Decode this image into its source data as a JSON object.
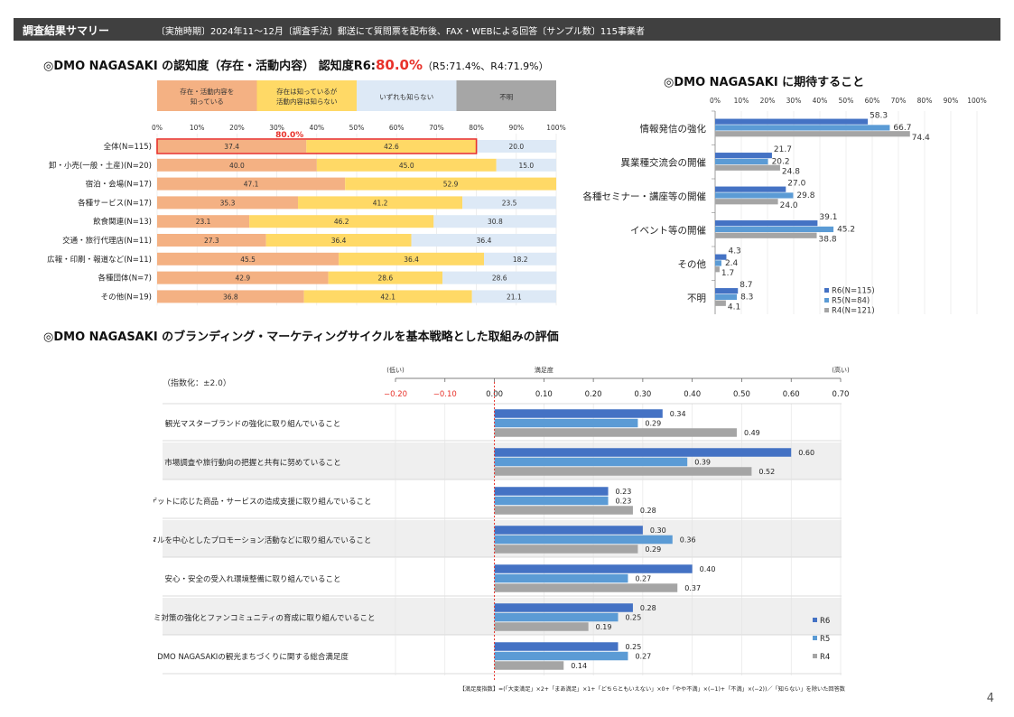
{
  "header": {
    "title": "調査結果サマリー",
    "description": "〔実施時期〕2024年11～12月〔調査手法〕郵送にて質問票を配布後、FAX・WEBによる回答〔サンプル数〕115事業者"
  },
  "section1": {
    "title": "◎DMO NAGASAKI の認知度（存在・活動内容） 認知度R6:",
    "highlight": "80.0%",
    "previous": "（R5:71.4%、R4:71.9%）"
  },
  "section2": {
    "title": "◎DMO NAGASAKI に期待すること"
  },
  "section3": {
    "title": "◎DMO NAGASAKI のブランディング・マーケティングサイクルを基本戦略とした取組みの評価"
  },
  "page_number": "4",
  "colors": {
    "header_bg": "#404040",
    "accent_red": "#e8322a",
    "stack_know_both": "#f4b183",
    "stack_know_exist": "#ffd966",
    "stack_none": "#dde9f6",
    "stack_unknown": "#a6a6a6",
    "r6": "#4472c4",
    "r5": "#5b9bd5",
    "r4": "#a5a5a5"
  },
  "chart_data": [
    {
      "type": "bar",
      "orientation": "horizontal",
      "stacked": true,
      "legend": [
        "存在・活動内容を知っている",
        "存在は知っているが活動内容は知らない",
        "いずれも知らない",
        "不明"
      ],
      "categories": [
        "全体(N=115)",
        "卸・小売(一般・土産)(N=20)",
        "宿泊・会場(N=17)",
        "各種サービス(N=17)",
        "飲食関連(N=13)",
        "交通・旅行代理店(N=11)",
        "広報・印刷・報道など(N=11)",
        "各種団体(N=7)",
        "その他(N=19)"
      ],
      "series": [
        {
          "name": "存在・活動内容を知っている",
          "values": [
            37.4,
            40.0,
            47.1,
            35.3,
            23.1,
            27.3,
            45.5,
            42.9,
            36.8
          ]
        },
        {
          "name": "存在は知っているが活動内容は知らない",
          "values": [
            42.6,
            45.0,
            52.9,
            41.2,
            46.2,
            36.4,
            36.4,
            28.6,
            42.1
          ]
        },
        {
          "name": "いずれも知らない",
          "values": [
            20.0,
            15.0,
            0,
            23.5,
            30.8,
            36.4,
            18.2,
            28.6,
            21.1
          ]
        },
        {
          "name": "不明",
          "values": [
            0,
            0,
            0,
            0,
            0,
            0,
            0,
            0,
            0
          ]
        }
      ],
      "value_labels": [
        [
          "37.4",
          "42.6",
          "20.0"
        ],
        [
          "40.0",
          "45.0",
          "15.0"
        ],
        [
          "47.1",
          "52.9",
          ""
        ],
        [
          "35.3",
          "41.2",
          "23.5"
        ],
        [
          "23.1",
          "46.2",
          "30.8"
        ],
        [
          "27.3",
          "36.4",
          "36.4"
        ],
        [
          "45.5",
          "36.4",
          "18.2"
        ],
        [
          "42.9",
          "28.6",
          "28.6"
        ],
        [
          "36.8",
          "42.1",
          "21.1"
        ]
      ],
      "xticks": [
        "0%",
        "10%",
        "20%",
        "30%",
        "40%",
        "50%",
        "60%",
        "70%",
        "80%",
        "90%",
        "100%"
      ],
      "xlim": [
        0,
        100
      ],
      "annotation": "80.0%"
    },
    {
      "type": "bar",
      "orientation": "horizontal",
      "categories": [
        "情報発信の強化",
        "異業種交流会の開催",
        "各種セミナー・講座等の開催",
        "イベント等の開催",
        "その他",
        "不明"
      ],
      "series": [
        {
          "name": "R6(N=115)",
          "values": [
            58.3,
            21.7,
            27.0,
            39.1,
            4.3,
            8.7
          ],
          "labels": [
            "58.3",
            "21.7",
            "27.0",
            "39.1",
            "4.3",
            "8.7"
          ]
        },
        {
          "name": "R5(N=84)",
          "values": [
            66.7,
            20.2,
            29.8,
            45.2,
            2.4,
            8.3
          ],
          "labels": [
            "66.7",
            "20.2",
            "29.8",
            "45.2",
            "2.4",
            "8.3"
          ]
        },
        {
          "name": "R4(N=121)",
          "values": [
            74.4,
            24.8,
            24.0,
            38.8,
            1.7,
            4.1
          ],
          "labels": [
            "74.4",
            "24.8",
            "24.0",
            "38.8",
            "1.7",
            "4.1"
          ]
        }
      ],
      "xticks": [
        "0%",
        "10%",
        "20%",
        "30%",
        "40%",
        "50%",
        "60%",
        "70%",
        "80%",
        "90%",
        "100%"
      ],
      "xlim": [
        0,
        100
      ],
      "legend_position": "bottom-right"
    },
    {
      "type": "bar",
      "orientation": "horizontal",
      "categories": [
        "観光マスターブランドの強化に取り組んでいること",
        "市場調査や旅行動向の把握と共有に努めていること",
        "ターゲットに応じた商品・サービスの造成支援に取り組んでいること",
        "デジタルを中心としたプロモーション活動などに取り組んでいること",
        "安心・安全の受入れ環境整備に取り組んでいること",
        "クチコミ対策の強化とファンコミュニティの育成に取り組んでいること",
        "DMO NAGASAKIの観光まちづくりに関する総合満足度"
      ],
      "series": [
        {
          "name": "R6",
          "values": [
            0.34,
            0.6,
            0.23,
            0.3,
            0.4,
            0.28,
            0.25
          ],
          "labels": [
            "0.34",
            "0.60",
            "0.23",
            "0.30",
            "0.40",
            "0.28",
            "0.25"
          ]
        },
        {
          "name": "R5",
          "values": [
            0.29,
            0.39,
            0.23,
            0.36,
            0.27,
            0.25,
            0.27
          ],
          "labels": [
            "0.29",
            "0.39",
            "0.23",
            "0.36",
            "0.27",
            "0.25",
            "0.27"
          ]
        },
        {
          "name": "R4",
          "values": [
            0.49,
            0.52,
            0.28,
            0.29,
            0.37,
            0.19,
            0.14
          ],
          "labels": [
            "0.49",
            "0.52",
            "0.28",
            "0.29",
            "0.37",
            "0.19",
            "0.14"
          ]
        }
      ],
      "xticks": [
        "−0.20",
        "−0.10",
        "0.00",
        "0.10",
        "0.20",
        "0.30",
        "0.40",
        "0.50",
        "0.60",
        "0.70"
      ],
      "xlim": [
        -0.2,
        0.7
      ],
      "axis_title": "満足度",
      "axis_low": "(低い)",
      "axis_high": "(高い)",
      "index_note": "（指数化：±2.0）",
      "formula": "【満足度指数】=(「大変満足」×2+「まあ満足」×1+「どちらともいえない」×0+「やや不満」×(−1)+「不満」×(−2))／「知らない」を除いた回答数",
      "legend_position": "bottom-right"
    }
  ]
}
